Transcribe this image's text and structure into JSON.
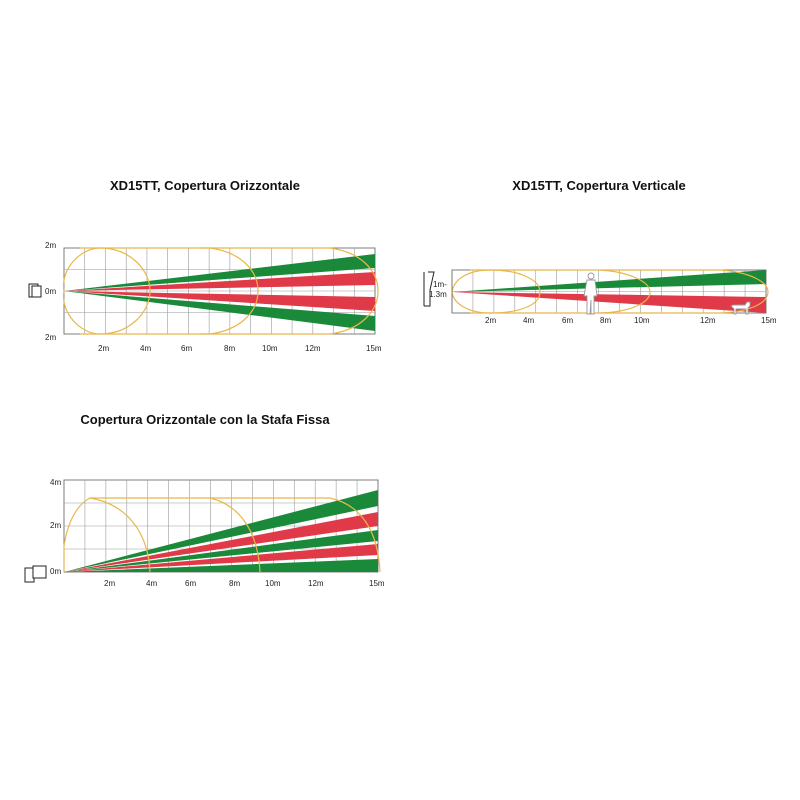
{
  "colors": {
    "green": "#1a8a3a",
    "red": "#e03a48",
    "lobe": "#e8b84a",
    "grid": "#9a9a9a"
  },
  "horizontal": {
    "title": "XD15TT, Copertura Orizzontale",
    "y_labels": [
      "2m",
      "0m",
      "2m"
    ],
    "x_labels": [
      "2m",
      "4m",
      "6m",
      "8m",
      "10m",
      "12m",
      "15m"
    ]
  },
  "vertical": {
    "title": "XD15TT, Copertura Verticale",
    "mount_height": "1m-\n1.3m",
    "x_labels": [
      "2m",
      "4m",
      "6m",
      "8m",
      "10m",
      "12m",
      "15m"
    ],
    "icons": [
      "person-icon",
      "dog-icon"
    ]
  },
  "bracket": {
    "title": "Copertura Orizzontale con la Stafa Fissa",
    "y_labels": [
      "4m",
      "2m",
      "0m"
    ],
    "x_labels": [
      "2m",
      "4m",
      "6m",
      "8m",
      "10m",
      "12m",
      "15m"
    ]
  }
}
